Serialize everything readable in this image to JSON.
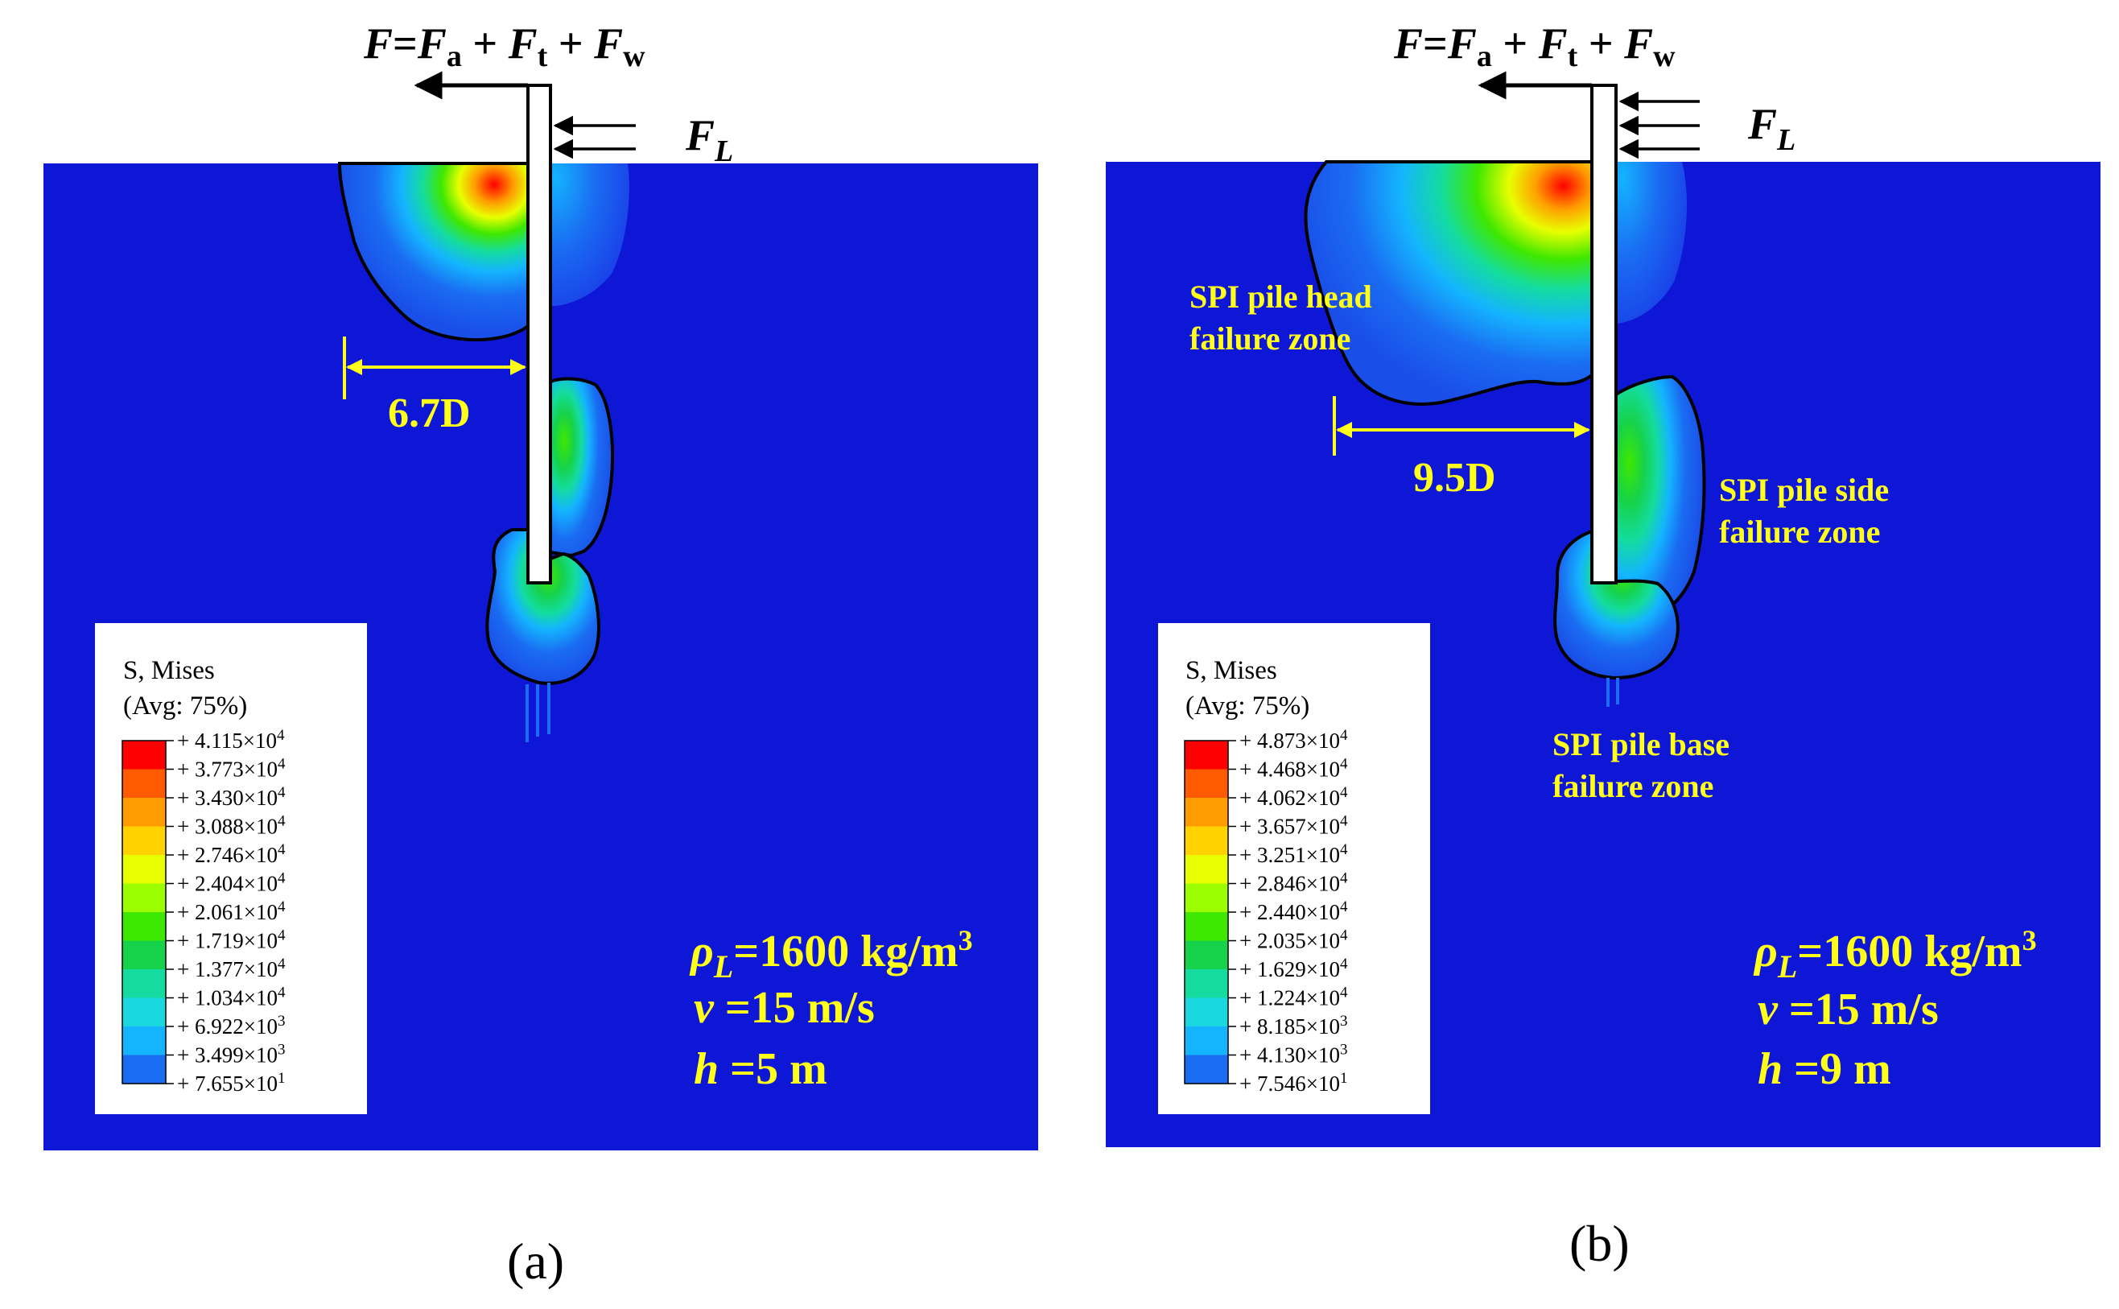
{
  "panels": [
    {
      "id": "a",
      "caption": "(a)",
      "force_eq": {
        "F": "F",
        "eq": "=",
        "Fa": "F",
        "a_sub": "a",
        "plus1": " + ",
        "Ft": "F",
        "t_sub": "t",
        "plus2": " + ",
        "Fw": "F",
        "w_sub": "w"
      },
      "fl_label": {
        "F": "F",
        "sub": "L"
      },
      "dimension": "6.7D",
      "zone_labels": [],
      "params": {
        "rho_sym": "ρ",
        "rho_sub": "L",
        "rho_val": "=1600 kg/m",
        "rho_exp": "3",
        "v_sym": "v",
        "v_val": " =15 m/s",
        "h_sym": "h",
        "h_val": " =5 m"
      },
      "legend": {
        "title": "S, Mises",
        "subtitle": "(Avg: 75%)",
        "entries": [
          {
            "mant": "+ 4.115×10",
            "exp": "4"
          },
          {
            "mant": "+ 3.773×10",
            "exp": "4"
          },
          {
            "mant": "+ 3.430×10",
            "exp": "4"
          },
          {
            "mant": "+ 3.088×10",
            "exp": "4"
          },
          {
            "mant": "+ 2.746×10",
            "exp": "4"
          },
          {
            "mant": "+ 2.404×10",
            "exp": "4"
          },
          {
            "mant": "+ 2.061×10",
            "exp": "4"
          },
          {
            "mant": "+ 1.719×10",
            "exp": "4"
          },
          {
            "mant": "+ 1.377×10",
            "exp": "4"
          },
          {
            "mant": "+ 1.034×10",
            "exp": "4"
          },
          {
            "mant": "+ 6.922×10",
            "exp": "3"
          },
          {
            "mant": "+ 3.499×10",
            "exp": "3"
          },
          {
            "mant": "+ 7.655×10",
            "exp": "1"
          }
        ]
      }
    },
    {
      "id": "b",
      "caption": "(b)",
      "force_eq": {
        "F": "F",
        "eq": "=",
        "Fa": "F",
        "a_sub": "a",
        "plus1": " + ",
        "Ft": "F",
        "t_sub": "t",
        "plus2": " + ",
        "Fw": "F",
        "w_sub": "w"
      },
      "fl_label": {
        "F": "F",
        "sub": "L"
      },
      "dimension": "9.5D",
      "zone_labels": [
        {
          "line1": "SPI pile head",
          "line2": "failure zone"
        },
        {
          "line1": "SPI pile side",
          "line2": "failure zone"
        },
        {
          "line1": "SPI pile base",
          "line2": "failure zone"
        }
      ],
      "params": {
        "rho_sym": "ρ",
        "rho_sub": "L",
        "rho_val": "=1600 kg/m",
        "rho_exp": "3",
        "v_sym": "v",
        "v_val": " =15 m/s",
        "h_sym": "h",
        "h_val": " =9 m"
      },
      "legend": {
        "title": "S, Mises",
        "subtitle": "(Avg: 75%)",
        "entries": [
          {
            "mant": "+ 4.873×10",
            "exp": "4"
          },
          {
            "mant": "+ 4.468×10",
            "exp": "4"
          },
          {
            "mant": "+ 4.062×10",
            "exp": "4"
          },
          {
            "mant": "+ 3.657×10",
            "exp": "4"
          },
          {
            "mant": "+ 3.251×10",
            "exp": "4"
          },
          {
            "mant": "+ 2.846×10",
            "exp": "4"
          },
          {
            "mant": "+ 2.440×10",
            "exp": "4"
          },
          {
            "mant": "+ 2.035×10",
            "exp": "4"
          },
          {
            "mant": "+ 1.629×10",
            "exp": "4"
          },
          {
            "mant": "+ 1.224×10",
            "exp": "4"
          },
          {
            "mant": "+ 8.185×10",
            "exp": "3"
          },
          {
            "mant": "+ 4.130×10",
            "exp": "3"
          },
          {
            "mant": "+ 7.546×10",
            "exp": "1"
          }
        ]
      }
    }
  ],
  "colors": {
    "soil": "#0f17d6",
    "contour_scale": [
      "#ff0000",
      "#ff5a00",
      "#ff9c00",
      "#ffd200",
      "#e8ff00",
      "#9cff00",
      "#3fe800",
      "#16d24a",
      "#14dca0",
      "#1ad8e0",
      "#14b4ff",
      "#1a6cf2",
      "#0a1ef0"
    ],
    "label": "#ffff1a",
    "outline": "#000000"
  }
}
